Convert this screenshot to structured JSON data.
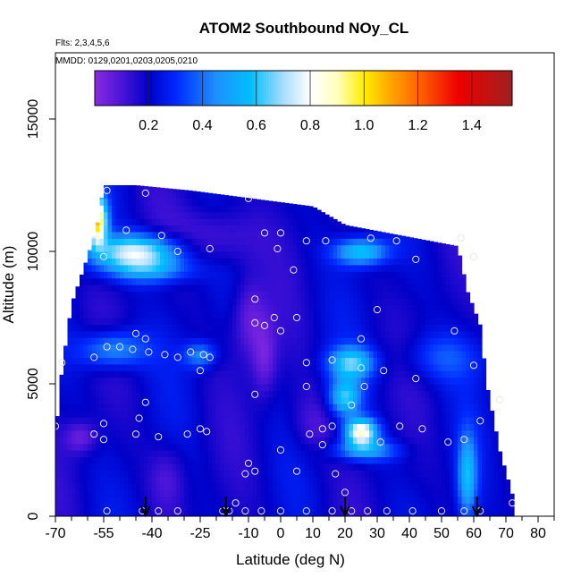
{
  "chart_data": {
    "type": "heatmap",
    "title": "ATOM2 Southbound NOy_CL",
    "subtitle_lines": [
      "Flts: 2,3,4,5,6",
      "MMDD: 0129,0201,0203,0205,0210"
    ],
    "xlabel": "Latitude (deg N)",
    "ylabel": "Altitude (m)",
    "xlim": [
      -70,
      85
    ],
    "ylim": [
      0,
      17500
    ],
    "x_ticks": [
      -70,
      -55,
      -40,
      -25,
      -10,
      0,
      10,
      20,
      30,
      40,
      50,
      60,
      70,
      80
    ],
    "x_minor_ticks": [
      -65,
      -60,
      -50,
      -45,
      -35,
      -30,
      -20,
      -15,
      -5,
      5,
      15,
      25,
      35,
      45,
      55,
      65,
      75,
      85
    ],
    "y_ticks": [
      0,
      5000,
      10000,
      15000
    ],
    "colorbar": {
      "range": [
        0.0,
        1.55
      ],
      "ticks": [
        0.2,
        0.4,
        0.6,
        0.8,
        1.0,
        1.2,
        1.4
      ],
      "separators": [
        0.2,
        0.4,
        0.6,
        0.8,
        1.0,
        1.2,
        1.4
      ],
      "stops": [
        {
          "v": 0.0,
          "c": "#8a2be2"
        },
        {
          "v": 0.1,
          "c": "#4b14d8"
        },
        {
          "v": 0.2,
          "c": "#0000c8"
        },
        {
          "v": 0.3,
          "c": "#0028ff"
        },
        {
          "v": 0.45,
          "c": "#1e90ff"
        },
        {
          "v": 0.58,
          "c": "#00bfff"
        },
        {
          "v": 0.7,
          "c": "#a8dcff"
        },
        {
          "v": 0.8,
          "c": "#ffffff"
        },
        {
          "v": 0.9,
          "c": "#ffffc0"
        },
        {
          "v": 1.0,
          "c": "#ffee00"
        },
        {
          "v": 1.1,
          "c": "#ffa500"
        },
        {
          "v": 1.2,
          "c": "#ff6600"
        },
        {
          "v": 1.35,
          "c": "#ee0000"
        },
        {
          "v": 1.55,
          "c": "#a02020"
        }
      ]
    },
    "flight_path_markers_lat": [
      -42,
      -17,
      20,
      61
    ],
    "coverage_envelope": [
      {
        "lat": -70,
        "top": 3000
      },
      {
        "lat": -68,
        "top": 5500
      },
      {
        "lat": -65,
        "top": 8000
      },
      {
        "lat": -60,
        "top": 9800
      },
      {
        "lat": -57,
        "top": 11000
      },
      {
        "lat": -55,
        "top": 12500
      },
      {
        "lat": -45,
        "top": 12500
      },
      {
        "lat": -28,
        "top": 12300
      },
      {
        "lat": 10,
        "top": 11700
      },
      {
        "lat": 20,
        "top": 11000
      },
      {
        "lat": 55,
        "top": 10200
      },
      {
        "lat": 58,
        "top": 8500
      },
      {
        "lat": 62,
        "top": 7200
      },
      {
        "lat": 64,
        "top": 5000
      },
      {
        "lat": 68,
        "top": 2500
      },
      {
        "lat": 72,
        "top": 800
      }
    ],
    "features": [
      {
        "lat": -45,
        "alt": 10000,
        "wlat": 14,
        "walt": 650,
        "v": 0.75
      },
      {
        "lat": -57,
        "alt": 11200,
        "wlat": 3,
        "walt": 900,
        "v": 1.05
      },
      {
        "lat": -40,
        "alt": 9300,
        "wlat": 14,
        "walt": 500,
        "v": 0.45
      },
      {
        "lat": -52,
        "alt": 6300,
        "wlat": 10,
        "walt": 700,
        "v": 0.5
      },
      {
        "lat": -25,
        "alt": 6100,
        "wlat": 5,
        "walt": 500,
        "v": 0.45
      },
      {
        "lat": 25,
        "alt": 10000,
        "wlat": 8,
        "walt": 500,
        "v": 0.6
      },
      {
        "lat": 22,
        "alt": 5800,
        "wlat": 7,
        "walt": 600,
        "v": 0.6
      },
      {
        "lat": 20,
        "alt": 4500,
        "wlat": 5,
        "walt": 700,
        "v": 0.6
      },
      {
        "lat": 25,
        "alt": 3200,
        "wlat": 5,
        "walt": 500,
        "v": 0.85
      },
      {
        "lat": 26,
        "alt": 2500,
        "wlat": 10,
        "walt": 400,
        "v": 0.5
      },
      {
        "lat": 58,
        "alt": 1500,
        "wlat": 3,
        "walt": 1600,
        "v": 0.55
      },
      {
        "lat": 50,
        "alt": 6000,
        "wlat": 12,
        "walt": 900,
        "v": 0.35
      },
      {
        "lat": -10,
        "alt": 7500,
        "wlat": 5,
        "walt": 1500,
        "v": 0.05
      },
      {
        "lat": -5,
        "alt": 6000,
        "wlat": 4,
        "walt": 1500,
        "v": 0.05
      },
      {
        "lat": -62,
        "alt": 3000,
        "wlat": 5,
        "walt": 600,
        "v": 0.05
      },
      {
        "lat": -20,
        "alt": 10500,
        "wlat": 12,
        "walt": 1200,
        "v": 0.05
      },
      {
        "lat": -35,
        "alt": 1500,
        "wlat": 6,
        "walt": 1200,
        "v": 0.1
      },
      {
        "lat": 10,
        "alt": 3500,
        "wlat": 7,
        "walt": 1200,
        "v": 0.1
      }
    ],
    "observations": [
      [
        -54,
        12300
      ],
      [
        -42,
        12200
      ],
      [
        -48,
        10800
      ],
      [
        -37,
        10600
      ],
      [
        -32,
        10000
      ],
      [
        -22,
        10100
      ],
      [
        -10,
        12000
      ],
      [
        -5,
        10700
      ],
      [
        0,
        10700
      ],
      [
        8,
        10400
      ],
      [
        14,
        10400
      ],
      [
        28,
        10500
      ],
      [
        36,
        10400
      ],
      [
        -1,
        10100
      ],
      [
        4,
        9300
      ],
      [
        -55,
        9800
      ],
      [
        42,
        9700
      ],
      [
        56,
        10500
      ],
      [
        60,
        9800
      ],
      [
        -8,
        8200
      ],
      [
        -2,
        7500
      ],
      [
        5,
        7500
      ],
      [
        30,
        7800
      ],
      [
        -8,
        7300
      ],
      [
        -5,
        7200
      ],
      [
        0,
        7000
      ],
      [
        -45,
        6900
      ],
      [
        -42,
        6700
      ],
      [
        25,
        6700
      ],
      [
        54,
        7000
      ],
      [
        -54,
        6400
      ],
      [
        -50,
        6400
      ],
      [
        -46,
        6300
      ],
      [
        -41,
        6200
      ],
      [
        -36,
        6100
      ],
      [
        -32,
        6000
      ],
      [
        -28,
        6200
      ],
      [
        -24,
        6100
      ],
      [
        -22,
        6000
      ],
      [
        -58,
        6000
      ],
      [
        8,
        5800
      ],
      [
        16,
        5900
      ],
      [
        25,
        5600
      ],
      [
        32,
        5500
      ],
      [
        60,
        5700
      ],
      [
        -68,
        5800
      ],
      [
        -25,
        5500
      ],
      [
        -8,
        4600
      ],
      [
        8,
        4900
      ],
      [
        26,
        4900
      ],
      [
        22,
        4200
      ],
      [
        42,
        5200
      ],
      [
        68,
        4400
      ],
      [
        -42,
        4300
      ],
      [
        -44,
        3700
      ],
      [
        -55,
        3500
      ],
      [
        -58,
        3100
      ],
      [
        -55,
        2900
      ],
      [
        -45,
        3100
      ],
      [
        -38,
        3000
      ],
      [
        -29,
        3100
      ],
      [
        -25,
        3300
      ],
      [
        -23,
        3200
      ],
      [
        -70,
        3400
      ],
      [
        13,
        3300
      ],
      [
        16,
        3400
      ],
      [
        9,
        3100
      ],
      [
        37,
        3400
      ],
      [
        44,
        3300
      ],
      [
        25,
        2900
      ],
      [
        31,
        2800
      ],
      [
        52,
        2800
      ],
      [
        57,
        2900
      ],
      [
        62,
        3600
      ],
      [
        13,
        2700
      ],
      [
        0,
        2500
      ],
      [
        -10,
        2000
      ],
      [
        -8,
        1700
      ],
      [
        -11,
        1600
      ],
      [
        5,
        1700
      ],
      [
        17,
        1600
      ],
      [
        -14,
        500
      ],
      [
        20,
        900
      ],
      [
        -54,
        200
      ],
      [
        -43,
        200
      ],
      [
        -38,
        200
      ],
      [
        -32,
        200
      ],
      [
        -18,
        200
      ],
      [
        -16,
        200
      ],
      [
        -11,
        200
      ],
      [
        -6,
        200
      ],
      [
        0,
        200
      ],
      [
        8,
        200
      ],
      [
        16,
        200
      ],
      [
        22,
        200
      ],
      [
        27,
        200
      ],
      [
        33,
        200
      ],
      [
        41,
        200
      ],
      [
        50,
        200
      ],
      [
        57,
        200
      ],
      [
        62,
        200
      ],
      [
        72,
        500
      ]
    ]
  }
}
